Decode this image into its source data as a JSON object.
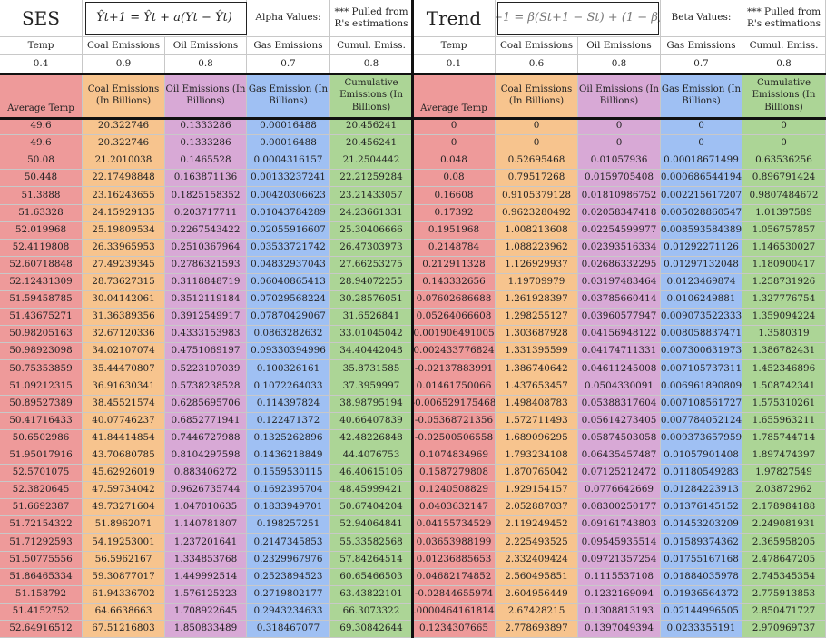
{
  "header": {
    "ses_title": "SES",
    "ses_formula": "Ŷt+1 = Ŷt + a(Yt − Ŷt)",
    "alpha_label": "Alpha Values:",
    "ses_note": "*** Pulled from R's estimations",
    "trend_title": "Trend",
    "trend_formula": "Tt+1 = β(St+1 − St) + (1 − β)Tt",
    "beta_label": "Beta Values:",
    "trend_note": "*** Pulled from R's estimations"
  },
  "params": {
    "ses_labels": [
      "Temp",
      "Coal Emissions",
      "Oil Emissions",
      "Gas Emissions",
      "Cumul. Emiss."
    ],
    "ses_values": [
      "0.4",
      "0.9",
      "0.8",
      "0.7",
      "0.8"
    ],
    "trend_labels": [
      "Temp",
      "Coal Emissions",
      "Oil Emissions",
      "Gas Emissions",
      "Cumul. Emiss."
    ],
    "trend_values": [
      "0.1",
      "0.6",
      "0.8",
      "0.7",
      "0.8"
    ]
  },
  "columns": {
    "ses": [
      "Average Temp",
      "Coal Emissions (In Billions)",
      "Oil Emissions (In Billions)",
      "Gas Emission (In Billions)",
      "Cumulative Emissions (In Billions)"
    ],
    "trend": [
      "Average Temp",
      "Coal Emissions (In Billions)",
      "Oil Emissions (In Billions)",
      "Gas Emission (In Billions)",
      "Cumulative Emissions (In Billions)"
    ]
  },
  "colors": {
    "temp": "#ee9a9a",
    "coal": "#f7c48e",
    "oil": "#d8a9d6",
    "gas": "#9fc0f3",
    "cumul": "#acd596"
  },
  "rows": [
    [
      "49.6",
      "20.322746",
      "0.1333286",
      "0.00016488",
      "20.456241",
      "0",
      "0",
      "0",
      "0",
      "0"
    ],
    [
      "49.6",
      "20.322746",
      "0.1333286",
      "0.00016488",
      "20.456241",
      "0",
      "0",
      "0",
      "0",
      "0"
    ],
    [
      "50.08",
      "21.2010038",
      "0.1465528",
      "0.0004316157",
      "21.2504442",
      "0.048",
      "0.52695468",
      "0.01057936",
      "0.00018671499",
      "0.63536256"
    ],
    [
      "50.448",
      "22.17498848",
      "0.163871136",
      "0.00133237241",
      "22.21259284",
      "0.08",
      "0.79517268",
      "0.0159705408",
      "0.000686544194",
      "0.896791424"
    ],
    [
      "51.3888",
      "23.16243655",
      "0.1825158352",
      "0.00420306623",
      "23.21433057",
      "0.16608",
      "0.9105379128",
      "0.01810986752",
      "0.002215617207",
      "0.9807484672"
    ],
    [
      "51.63328",
      "24.15929135",
      "0.203717711",
      "0.01043784289",
      "24.23661331",
      "0.17392",
      "0.9623280492",
      "0.02058347418",
      "0.005028860547",
      "1.01397589"
    ],
    [
      "52.019968",
      "25.19809534",
      "0.2267543422",
      "0.02055916607",
      "25.30406666",
      "0.1951968",
      "1.008213608",
      "0.02254599977",
      "0.008593584389",
      "1.056757857"
    ],
    [
      "52.4119808",
      "26.33965953",
      "0.2510367964",
      "0.03533721742",
      "26.47303973",
      "0.2148784",
      "1.088223962",
      "0.02393516334",
      "0.01292271126",
      "1.146530027"
    ],
    [
      "52.60718848",
      "27.49239345",
      "0.2786321593",
      "0.04832937043",
      "27.66253275",
      "0.212911328",
      "1.126929937",
      "0.02686332295",
      "0.01297132048",
      "1.180900417"
    ],
    [
      "52.12431309",
      "28.73627315",
      "0.3118848719",
      "0.06040865413",
      "28.94072255",
      "0.143332656",
      "1.19709979",
      "0.03197483464",
      "0.0123469874",
      "1.258731926"
    ],
    [
      "51.59458785",
      "30.04142061",
      "0.3512119184",
      "0.07029568224",
      "30.28576051",
      "0.07602686688",
      "1.261928397",
      "0.03785660414",
      "0.0106249881",
      "1.327776754"
    ],
    [
      "51.43675271",
      "31.36389356",
      "0.3912549917",
      "0.07870429067",
      "31.6526841",
      "0.05264066608",
      "1.298255127",
      "0.03960577947",
      "0.009073522333",
      "1.359094224"
    ],
    [
      "50.98205163",
      "32.67120336",
      "0.4333153983",
      "0.0863282632",
      "33.01045042",
      "0.001906491005",
      "1.303687928",
      "0.04156948122",
      "0.008058837471",
      "1.3580319"
    ],
    [
      "50.98923098",
      "34.02107074",
      "0.4751069197",
      "0.09330394996",
      "34.40442048",
      "0.002433776824",
      "1.331395599",
      "0.04174711331",
      "0.007300631973",
      "1.386782431"
    ],
    [
      "50.75353859",
      "35.44470807",
      "0.5223107039",
      "0.100326161",
      "35.8731585",
      "-0.02137883991",
      "1.386740642",
      "0.04611245008",
      "0.007105737311",
      "1.452346896"
    ],
    [
      "51.09212315",
      "36.91630341",
      "0.5738238528",
      "0.1072264033",
      "37.3959997",
      "0.01461750066",
      "1.437653457",
      "0.0504330091",
      "0.006961890809",
      "1.508742341"
    ],
    [
      "50.89527389",
      "38.45521574",
      "0.6285695706",
      "0.114397824",
      "38.98795194",
      "-0.006529175468",
      "1.498408783",
      "0.05388317604",
      "0.007108561727",
      "1.575310261"
    ],
    [
      "50.41716433",
      "40.07746237",
      "0.6852771941",
      "0.122471372",
      "40.66407839",
      "-0.05368721356",
      "1.572711493",
      "0.05614273405",
      "0.007784052124",
      "1.655963211"
    ],
    [
      "50.6502986",
      "41.84414854",
      "0.7446727988",
      "0.1325262896",
      "42.48226848",
      "-0.02500506558",
      "1.689096295",
      "0.05874503058",
      "0.009373657959",
      "1.785744714"
    ],
    [
      "51.95017916",
      "43.70680785",
      "0.8104297598",
      "0.1436218849",
      "44.4076753",
      "0.1074834969",
      "1.793234108",
      "0.06435457487",
      "0.01057901408",
      "1.897474397"
    ],
    [
      "52.5701075",
      "45.62926019",
      "0.883406272",
      "0.1559530115",
      "46.40615106",
      "0.1587279808",
      "1.870765042",
      "0.07125212472",
      "0.01180549283",
      "1.97827549"
    ],
    [
      "52.3820645",
      "47.59734042",
      "0.9626735744",
      "0.1692395704",
      "48.45999421",
      "0.1240508829",
      "1.929154157",
      "0.0776642669",
      "0.01284223913",
      "2.03872962"
    ],
    [
      "51.6692387",
      "49.73271604",
      "1.047010635",
      "0.1833949701",
      "50.67404204",
      "0.0403632147",
      "2.052887037",
      "0.08300250177",
      "0.01376145152",
      "2.178984188"
    ],
    [
      "51.72154322",
      "51.8962071",
      "1.140781807",
      "0.198257251",
      "52.94064841",
      "0.04155734529",
      "2.119249452",
      "0.09161743803",
      "0.01453203209",
      "2.249081931"
    ],
    [
      "51.71292593",
      "54.19253001",
      "1.237201641",
      "0.2147345853",
      "55.33582568",
      "0.03653988199",
      "2.225493525",
      "0.09545935514",
      "0.01589374362",
      "2.365958205"
    ],
    [
      "51.50775556",
      "56.5962167",
      "1.334853768",
      "0.2329967976",
      "57.84264514",
      "0.01236885653",
      "2.332409424",
      "0.09721357254",
      "0.01755167168",
      "2.478647205"
    ],
    [
      "51.86465334",
      "59.30877017",
      "1.449992514",
      "0.2523894523",
      "60.65466503",
      "0.04682174852",
      "2.560495851",
      "0.1115537108",
      "0.01884035978",
      "2.745345354"
    ],
    [
      "51.158792",
      "61.94336702",
      "1.576125223",
      "0.2719802177",
      "63.43822101",
      "-0.02844655974",
      "2.604956449",
      "0.1232169094",
      "0.01936564372",
      "2.775913853"
    ],
    [
      "51.4152752",
      "64.6638663",
      "1.708922645",
      "0.2943234633",
      "66.3073322",
      "0.00004641618142",
      "2.67428215",
      "0.1308813193",
      "0.02144996505",
      "2.850471727"
    ],
    [
      "52.64916512",
      "67.51216803",
      "1.850833489",
      "0.318467077",
      "69.30842644",
      "0.1234307665",
      "2.778693897",
      "0.1397049394",
      "0.0233355191",
      "2.970969737"
    ]
  ]
}
